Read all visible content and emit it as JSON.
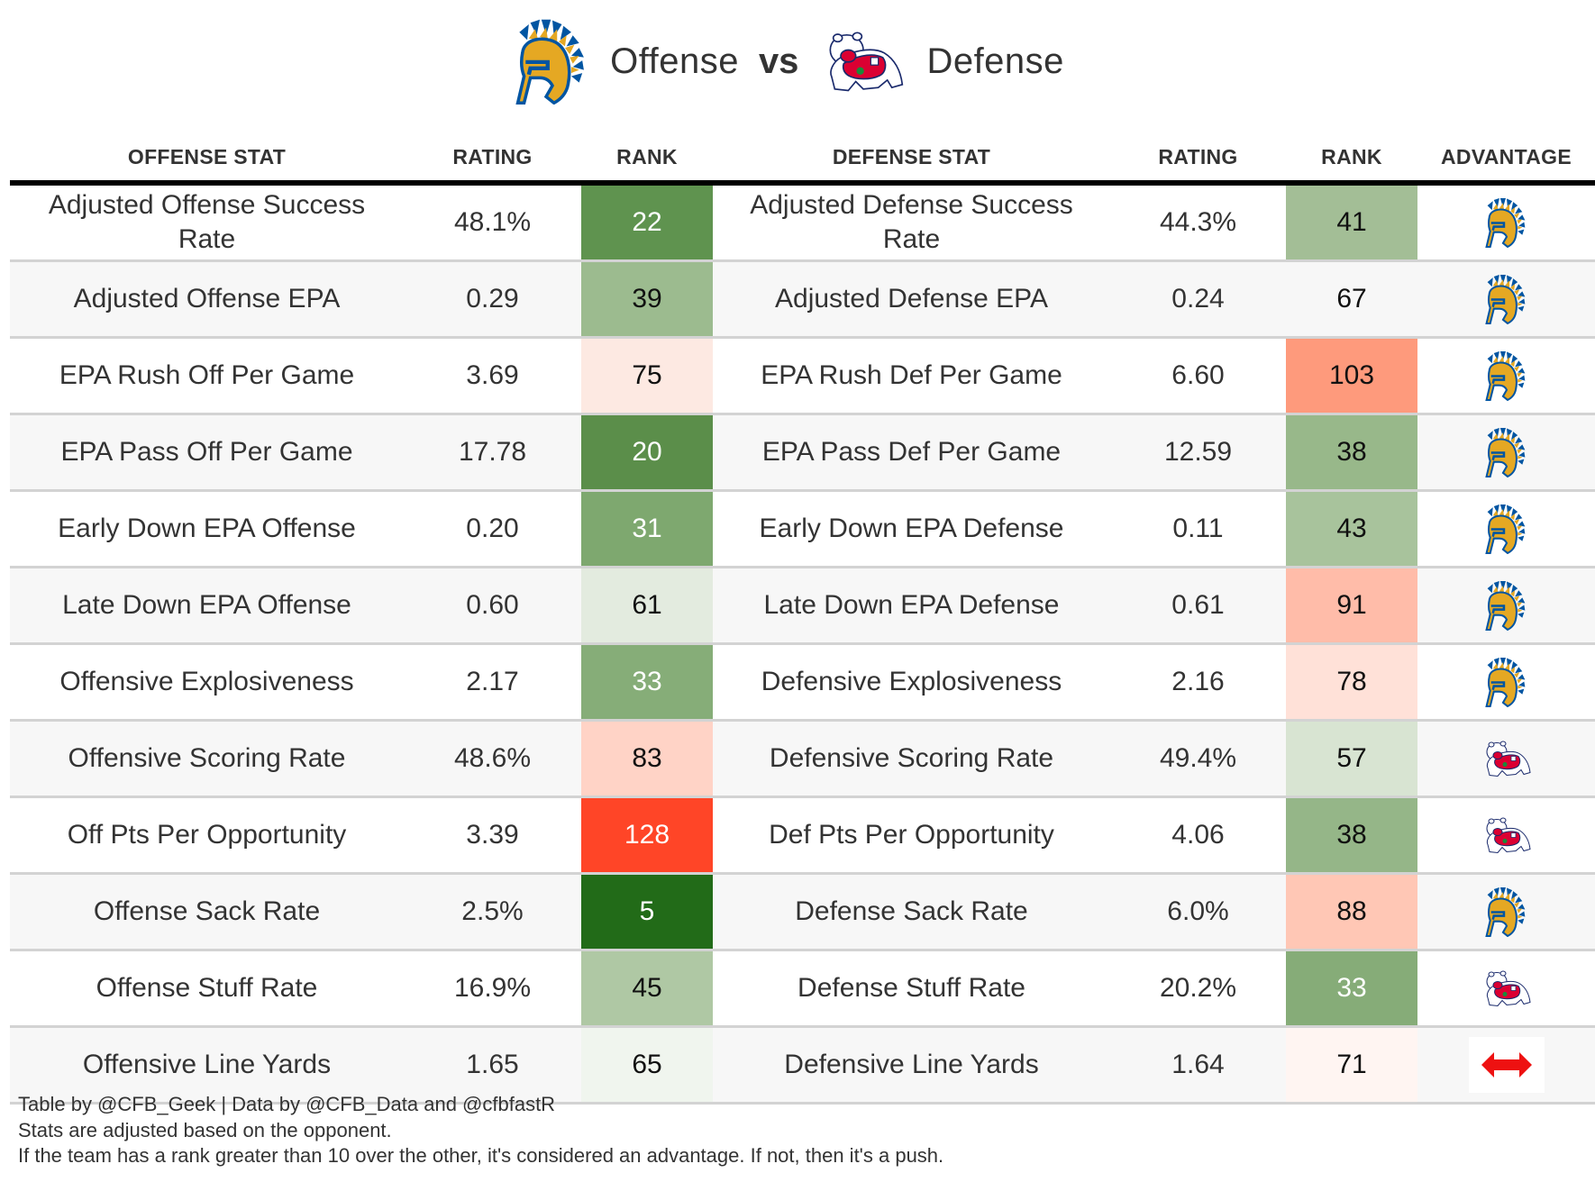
{
  "title": {
    "offense_team_icon": "spartan-helmet-icon",
    "offense_word": "Offense",
    "vs_word": "vs",
    "defense_team_icon": "bulldog-icon",
    "defense_word": "Defense"
  },
  "headers": {
    "offense_stat": "OFFENSE STAT",
    "offense_rating": "RATING",
    "offense_rank": "RANK",
    "defense_stat": "DEFENSE STAT",
    "defense_rating": "RATING",
    "defense_rank": "RANK",
    "advantage": "ADVANTAGE"
  },
  "colors": {
    "offense_primary": "#0055A2",
    "offense_gold": "#E5A823",
    "defense_red": "#DB0032",
    "push_red": "#EE1111"
  },
  "rows": [
    {
      "off_stat": "Adjusted Offense Success Rate",
      "off_rating": "48.1%",
      "off_rank": "22",
      "off_rank_color": "#5f934f",
      "off_rank_light": true,
      "def_stat": "Adjusted Defense Success Rate",
      "def_rating": "44.3%",
      "def_rank": "41",
      "def_rank_color": "#a3be96",
      "def_rank_light": false,
      "advantage": "offense"
    },
    {
      "off_stat": "Adjusted Offense EPA",
      "off_rating": "0.29",
      "off_rank": "39",
      "off_rank_color": "#9cbb8f",
      "off_rank_light": false,
      "def_stat": "Adjusted Defense EPA",
      "def_rating": "0.24",
      "def_rank": "67",
      "def_rank_color": "",
      "def_rank_light": false,
      "advantage": "offense"
    },
    {
      "off_stat": "EPA Rush Off Per Game",
      "off_rating": "3.69",
      "off_rank": "75",
      "off_rank_color": "#fde9e2",
      "off_rank_light": false,
      "def_stat": "EPA Rush Def Per Game",
      "def_rating": "6.60",
      "def_rank": "103",
      "def_rank_color": "#fe9a7c",
      "def_rank_light": false,
      "advantage": "offense"
    },
    {
      "off_stat": "EPA Pass Off Per Game",
      "off_rating": "17.78",
      "off_rank": "20",
      "off_rank_color": "#5b8e4a",
      "off_rank_light": true,
      "def_stat": "EPA Pass Def Per Game",
      "def_rating": "12.59",
      "def_rank": "38",
      "def_rank_color": "#98b88a",
      "def_rank_light": false,
      "advantage": "offense"
    },
    {
      "off_stat": "Early Down EPA Offense",
      "off_rating": "0.20",
      "off_rank": "31",
      "off_rank_color": "#7ea86f",
      "off_rank_light": true,
      "def_stat": "Early Down EPA Defense",
      "def_rating": "0.11",
      "def_rank": "43",
      "def_rank_color": "#a8c39c",
      "def_rank_light": false,
      "advantage": "offense"
    },
    {
      "off_stat": "Late Down EPA Offense",
      "off_rating": "0.60",
      "off_rank": "61",
      "off_rank_color": "#e3ebdf",
      "off_rank_light": false,
      "def_stat": "Late Down EPA Defense",
      "def_rating": "0.61",
      "def_rank": "91",
      "def_rank_color": "#ffbca9",
      "def_rank_light": false,
      "advantage": "offense"
    },
    {
      "off_stat": "Offensive Explosiveness",
      "off_rating": "2.17",
      "off_rank": "33",
      "off_rank_color": "#86ad78",
      "off_rank_light": true,
      "def_stat": "Defensive Explosiveness",
      "def_rating": "2.16",
      "def_rank": "78",
      "def_rank_color": "#ffe1d8",
      "def_rank_light": false,
      "advantage": "offense"
    },
    {
      "off_stat": "Offensive Scoring Rate",
      "off_rating": "48.6%",
      "off_rank": "83",
      "off_rank_color": "#ffd3c6",
      "off_rank_light": false,
      "def_stat": "Defensive Scoring Rate",
      "def_rating": "49.4%",
      "def_rank": "57",
      "def_rank_color": "#d8e4d2",
      "def_rank_light": false,
      "advantage": "defense"
    },
    {
      "off_stat": "Off Pts Per Opportunity",
      "off_rating": "3.39",
      "off_rank": "128",
      "off_rank_color": "#ff4527",
      "off_rank_light": true,
      "def_stat": "Def Pts Per Opportunity",
      "def_rating": "4.06",
      "def_rank": "38",
      "def_rank_color": "#95b688",
      "def_rank_light": false,
      "advantage": "defense"
    },
    {
      "off_stat": "Offense Sack Rate",
      "off_rating": "2.5%",
      "off_rank": "5",
      "off_rank_color": "#226b18",
      "off_rank_light": true,
      "def_stat": "Defense Sack Rate",
      "def_rating": "6.0%",
      "def_rank": "88",
      "def_rank_color": "#ffc7b5",
      "def_rank_light": false,
      "advantage": "offense"
    },
    {
      "off_stat": "Offense Stuff Rate",
      "off_rating": "16.9%",
      "off_rank": "45",
      "off_rank_color": "#afc8a4",
      "off_rank_light": false,
      "def_stat": "Defense Stuff Rate",
      "def_rating": "20.2%",
      "def_rank": "33",
      "def_rank_color": "#86ac78",
      "def_rank_light": true,
      "advantage": "defense"
    },
    {
      "off_stat": "Offensive Line Yards",
      "off_rating": "1.65",
      "off_rank": "65",
      "off_rank_color": "#f0f5ee",
      "off_rank_light": false,
      "def_stat": "Defensive Line Yards",
      "def_rating": "1.64",
      "def_rank": "71",
      "def_rank_color": "#fff5f2",
      "def_rank_light": false,
      "advantage": "push"
    }
  ],
  "footer": {
    "line1": "Table by @CFB_Geek | Data by @CFB_Data and @cfbfastR",
    "line2": "Stats are adjusted based on the opponent.",
    "line3": "If the team has a rank greater than 10 over the other, it's considered an advantage. If not, then it's a push."
  }
}
